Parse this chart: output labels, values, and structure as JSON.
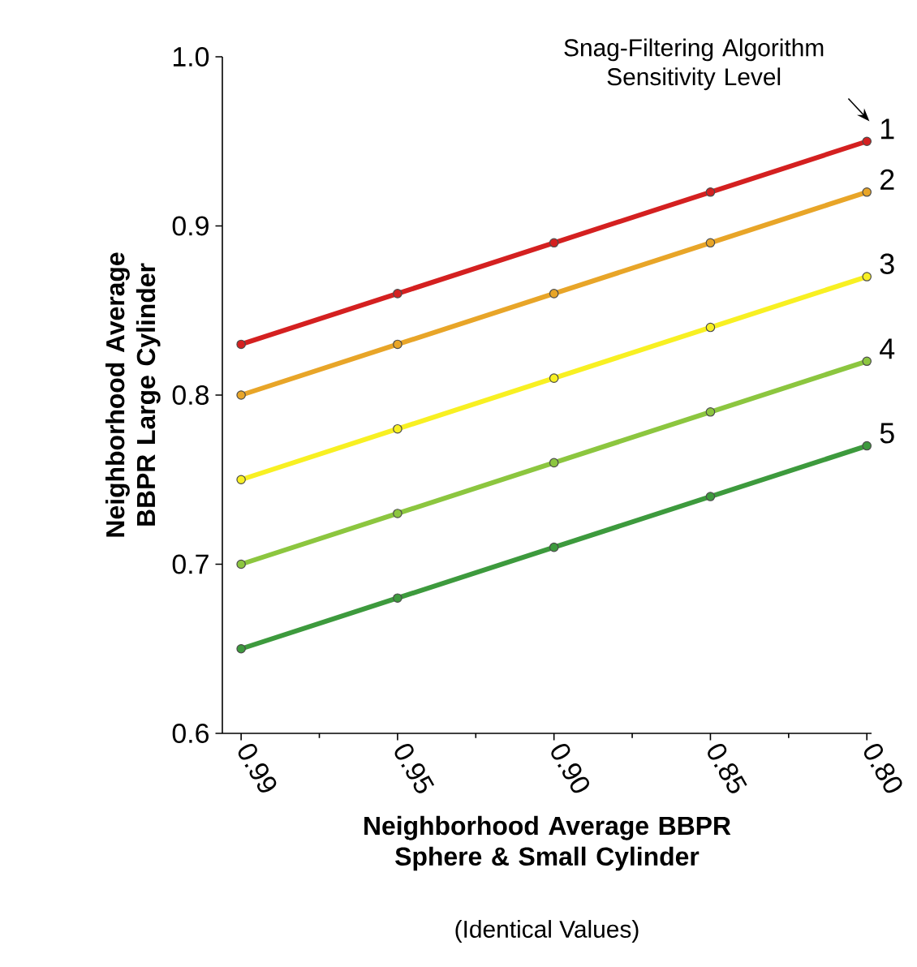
{
  "chart_data": {
    "type": "line",
    "xlabel": "Neighborhood Average BBPR Sphere & Small Cylinder",
    "ylabel": "Neighborhood Average BBPR Large Cylinder",
    "legend_title": "Snag-Filtering Algorithm Sensitivity Level",
    "annotations": [
      "(Identical Values)"
    ],
    "categories": [
      "0.99",
      "0.95",
      "0.90",
      "0.85",
      "0.80"
    ],
    "ylim": [
      0.6,
      1.0
    ],
    "yticks": [
      {
        "value": 0.6,
        "label": "0.6"
      },
      {
        "value": 0.7,
        "label": "0.7"
      },
      {
        "value": 0.8,
        "label": "0.8"
      },
      {
        "value": 0.9,
        "label": "0.9"
      },
      {
        "value": 1.0,
        "label": "1.0"
      }
    ],
    "marker": "circle",
    "grid": false,
    "series": [
      {
        "name": "1",
        "color": "#d42020",
        "values": [
          0.83,
          0.86,
          0.89,
          0.92,
          0.95
        ]
      },
      {
        "name": "2",
        "color": "#e8a528",
        "values": [
          0.8,
          0.83,
          0.86,
          0.89,
          0.92
        ]
      },
      {
        "name": "3",
        "color": "#f8f022",
        "values": [
          0.75,
          0.78,
          0.81,
          0.84,
          0.87
        ]
      },
      {
        "name": "4",
        "color": "#8cc63f",
        "values": [
          0.7,
          0.73,
          0.76,
          0.79,
          0.82
        ]
      },
      {
        "name": "5",
        "color": "#3d9a3d",
        "values": [
          0.65,
          0.68,
          0.71,
          0.74,
          0.77
        ]
      }
    ]
  }
}
